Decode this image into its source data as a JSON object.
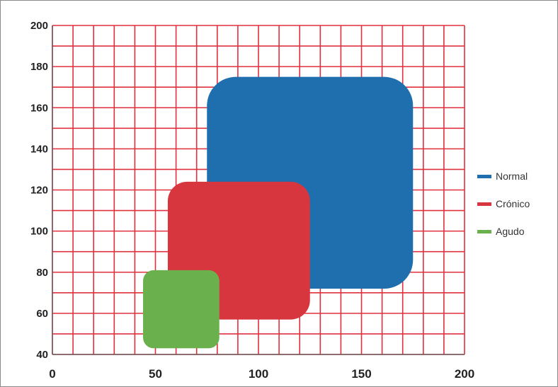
{
  "chart_data": {
    "type": "area",
    "title": "",
    "xlabel": "",
    "ylabel": "",
    "xlim": [
      0,
      200
    ],
    "ylim": [
      40,
      200
    ],
    "x_ticks": [
      0,
      50,
      100,
      150,
      200
    ],
    "y_ticks": [
      40,
      60,
      80,
      100,
      120,
      140,
      160,
      180,
      200
    ],
    "grid": true,
    "grid_color": "#e0303e",
    "grid_x_step": 10,
    "grid_y_step": 10,
    "legend_position": "right",
    "series": [
      {
        "name": "Normal",
        "color": "#1f6fae",
        "x_range": [
          75,
          175
        ],
        "y_range": [
          72,
          175
        ]
      },
      {
        "name": "Crónico",
        "color": "#d8363e",
        "x_range": [
          56,
          125
        ],
        "y_range": [
          57,
          124
        ]
      },
      {
        "name": "Agudo",
        "color": "#6ab04c",
        "x_range": [
          44,
          81
        ],
        "y_range": [
          43,
          81
        ]
      }
    ]
  }
}
